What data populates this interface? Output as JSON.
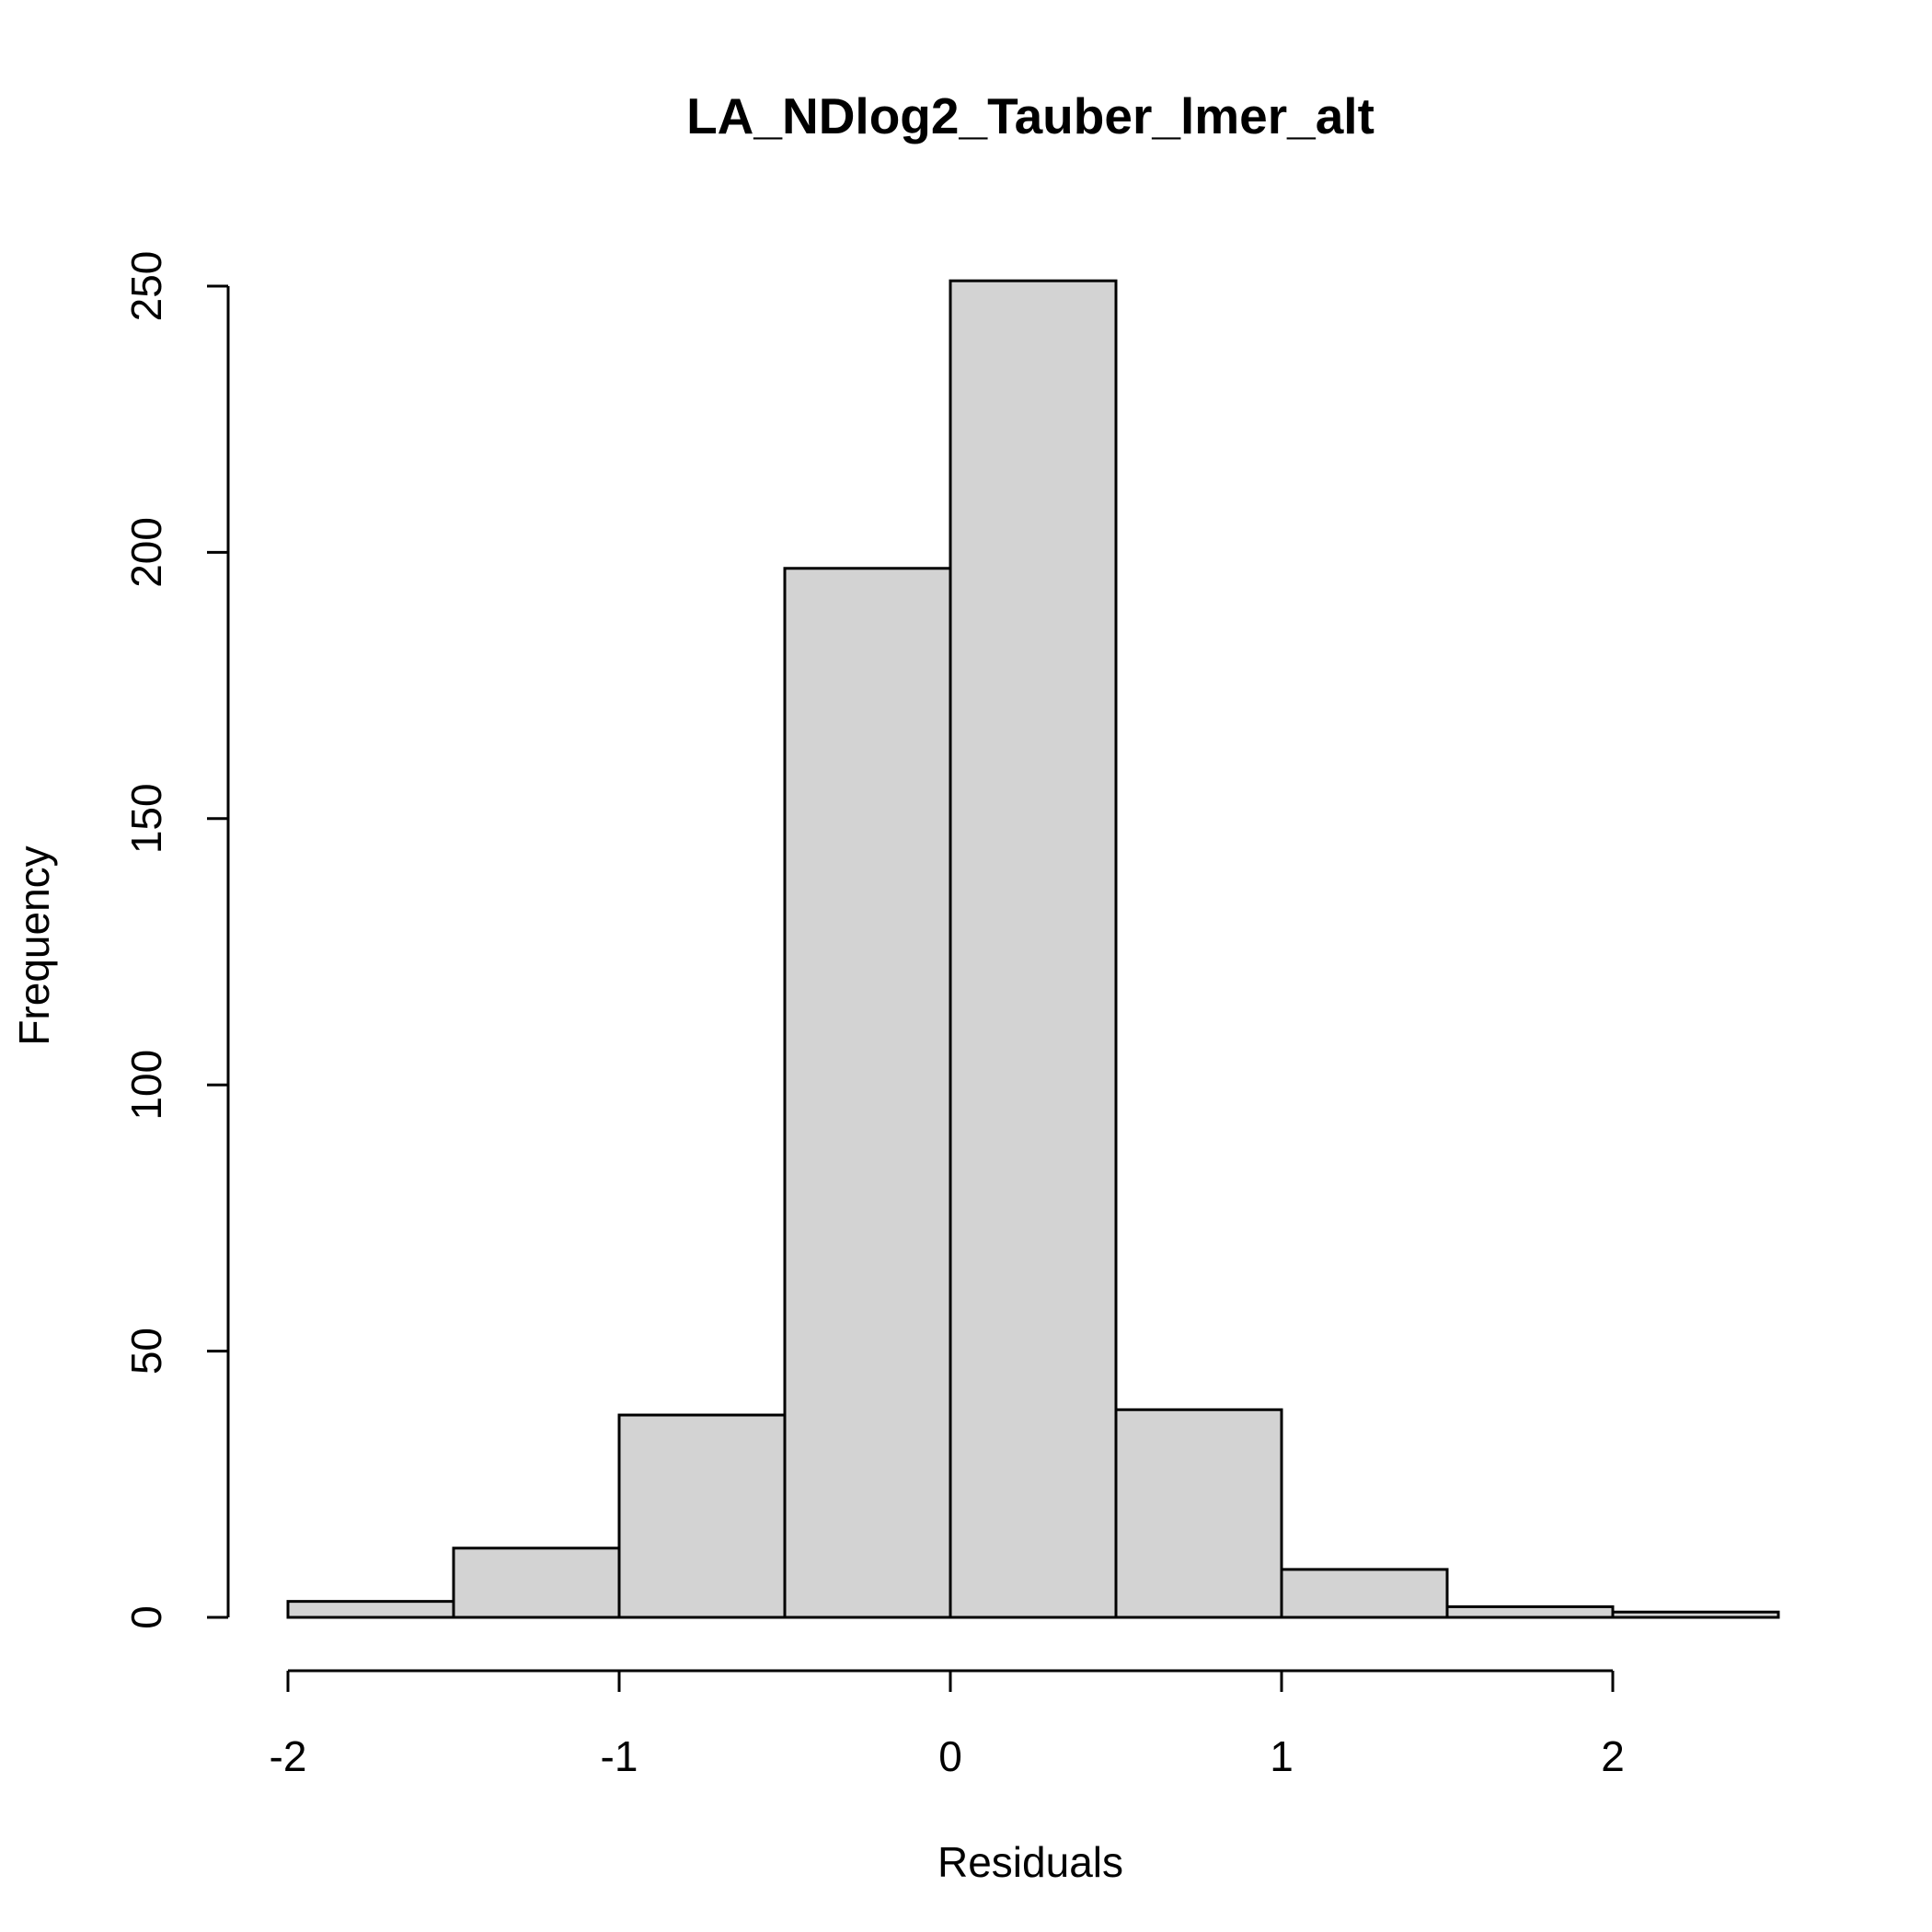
{
  "chart_data": {
    "type": "bar",
    "title": "LA_NDlog2_Tauber_lmer_alt",
    "xlabel": "Residuals",
    "ylabel": "Frequency",
    "bins": [
      {
        "start": -2.0,
        "end": -1.5,
        "count": 3
      },
      {
        "start": -1.5,
        "end": -1.0,
        "count": 13
      },
      {
        "start": -1.0,
        "end": -0.5,
        "count": 38
      },
      {
        "start": -0.5,
        "end": 0.0,
        "count": 197
      },
      {
        "start": 0.0,
        "end": 0.5,
        "count": 251
      },
      {
        "start": 0.5,
        "end": 1.0,
        "count": 39
      },
      {
        "start": 1.0,
        "end": 1.5,
        "count": 9
      },
      {
        "start": 1.5,
        "end": 2.0,
        "count": 2
      },
      {
        "start": 2.0,
        "end": 2.5,
        "count": 1
      }
    ],
    "xticks": [
      "-2",
      "-1",
      "0",
      "1",
      "2"
    ],
    "yticks": [
      "0",
      "50",
      "100",
      "150",
      "200",
      "250"
    ],
    "xlim": [
      -2,
      2.5
    ],
    "ylim": [
      0,
      251
    ],
    "colors": {
      "bar_fill": "#d3d3d3",
      "bar_stroke": "#000000"
    },
    "grid": false
  }
}
